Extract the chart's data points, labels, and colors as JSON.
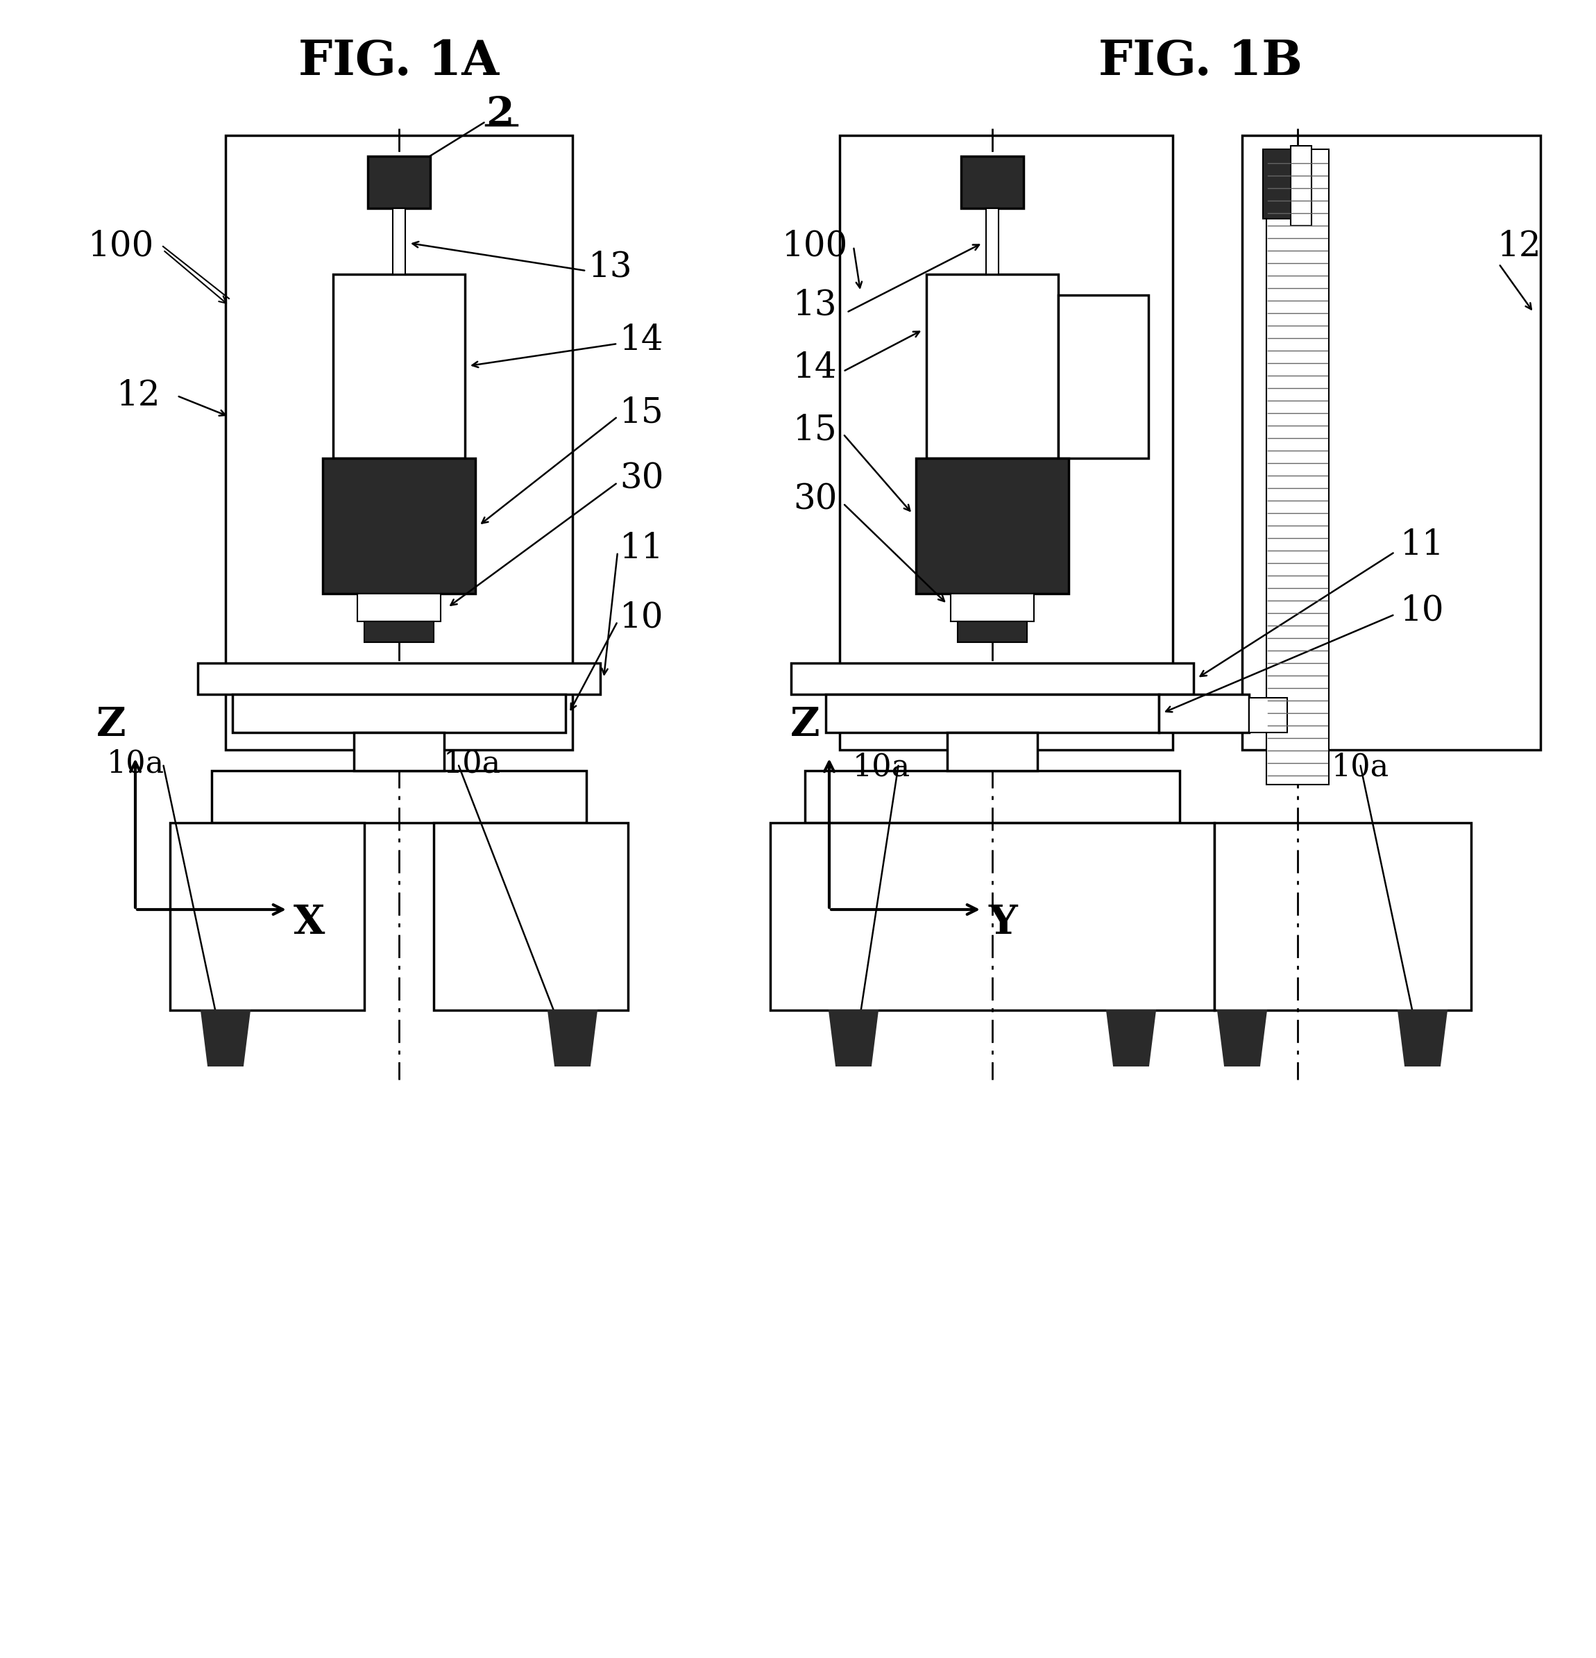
{
  "fig_title_A": "FIG. 1A",
  "fig_title_B": "FIG. 1B",
  "bg_color": "#ffffff",
  "line_color": "#000000",
  "dark_fill": "#2a2a2a",
  "label_2": "2",
  "label_100_A": "100",
  "label_100_B": "100",
  "label_12_A": "12",
  "label_12_B": "12",
  "label_13": "13",
  "label_14": "14",
  "label_15": "15",
  "label_30": "30",
  "label_11": "11",
  "label_10": "10",
  "label_10a": "10a",
  "axis_label_Z": "Z",
  "axis_label_X": "X",
  "axis_label_Y": "Y"
}
